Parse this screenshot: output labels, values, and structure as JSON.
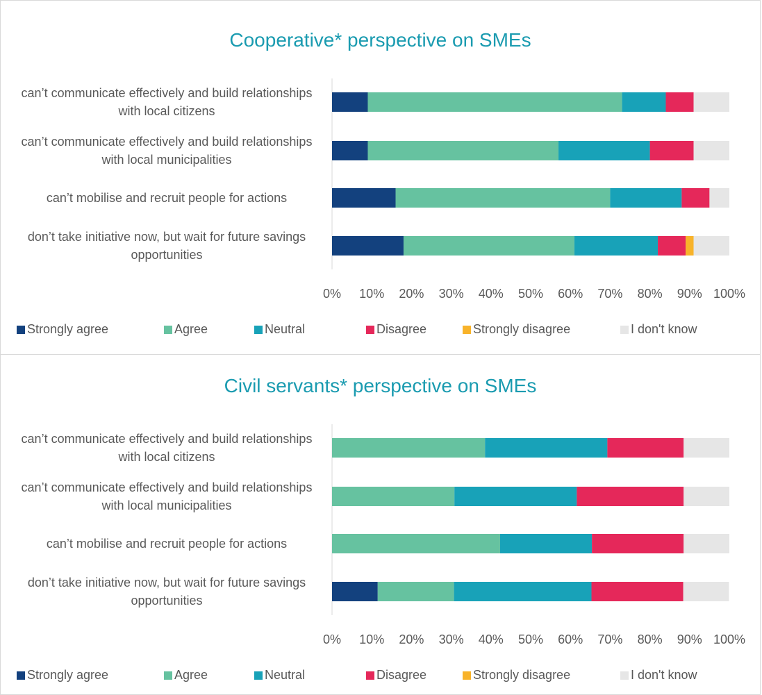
{
  "chart_data": [
    {
      "type": "bar",
      "orientation": "horizontal",
      "stacked": true,
      "title": "Cooperative* perspective on SMEs",
      "categories": [
        "can’t communicate effectively and build relationships with local citizens",
        "can’t communicate effectively and build relationships with local municipalities",
        "can’t mobilise and recruit people for actions",
        "don’t take initiative now, but wait for future savings opportunities"
      ],
      "series": [
        {
          "name": "Strongly agree",
          "color": "#13417e",
          "values": [
            9,
            9,
            16,
            18
          ]
        },
        {
          "name": "Agree",
          "color": "#66c2a0",
          "values": [
            64,
            48,
            54,
            43
          ]
        },
        {
          "name": "Neutral",
          "color": "#18a2b8",
          "values": [
            11,
            23,
            18,
            21
          ]
        },
        {
          "name": "Disagree",
          "color": "#e5285a",
          "values": [
            7,
            11,
            7,
            7
          ]
        },
        {
          "name": "Strongly disagree",
          "color": "#f8b32a",
          "values": [
            0,
            0,
            0,
            2
          ]
        },
        {
          "name": "I don't know",
          "color": "#e6e6e6",
          "values": [
            9,
            9,
            5,
            9
          ]
        }
      ],
      "xlim": [
        0,
        100
      ],
      "xticks": [
        {
          "value": 0,
          "label": "0%"
        },
        {
          "value": 10,
          "label": "10%"
        },
        {
          "value": 20,
          "label": "20%"
        },
        {
          "value": 30,
          "label": "30%"
        },
        {
          "value": 40,
          "label": "40%"
        },
        {
          "value": 50,
          "label": "50%"
        },
        {
          "value": 60,
          "label": "60%"
        },
        {
          "value": 70,
          "label": "70%"
        },
        {
          "value": 80,
          "label": "80%"
        },
        {
          "value": 90,
          "label": "90%"
        },
        {
          "value": 100,
          "label": "100%"
        }
      ],
      "legend": "bottom",
      "grid": false
    },
    {
      "type": "bar",
      "orientation": "horizontal",
      "stacked": true,
      "title": "Civil servants* perspective on SMEs",
      "categories": [
        "can’t communicate effectively and build relationships with local citizens",
        "can’t communicate effectively and build relationships with local municipalities",
        "can’t mobilise and recruit people for actions",
        "don’t take initiative now, but wait for future savings opportunities"
      ],
      "series": [
        {
          "name": "Strongly agree",
          "color": "#13417e",
          "values": [
            0,
            0,
            0,
            11.5
          ]
        },
        {
          "name": "Agree",
          "color": "#66c2a0",
          "values": [
            38.5,
            30.8,
            42.3,
            19.2
          ]
        },
        {
          "name": "Neutral",
          "color": "#18a2b8",
          "values": [
            30.8,
            30.8,
            23.1,
            34.6
          ]
        },
        {
          "name": "Disagree",
          "color": "#e5285a",
          "values": [
            19.2,
            26.9,
            23.1,
            23.1
          ]
        },
        {
          "name": "Strongly disagree",
          "color": "#f8b32a",
          "values": [
            0,
            0,
            0,
            0
          ]
        },
        {
          "name": "I don't know",
          "color": "#e6e6e6",
          "values": [
            11.5,
            11.5,
            11.5,
            11.5
          ]
        }
      ],
      "xlim": [
        0,
        100
      ],
      "xticks": [
        {
          "value": 0,
          "label": "0%"
        },
        {
          "value": 10,
          "label": "10%"
        },
        {
          "value": 20,
          "label": "20%"
        },
        {
          "value": 30,
          "label": "30%"
        },
        {
          "value": 40,
          "label": "40%"
        },
        {
          "value": 50,
          "label": "50%"
        },
        {
          "value": 60,
          "label": "60%"
        },
        {
          "value": 70,
          "label": "70%"
        },
        {
          "value": 80,
          "label": "80%"
        },
        {
          "value": 90,
          "label": "90%"
        },
        {
          "value": 100,
          "label": "100%"
        }
      ],
      "legend": "bottom",
      "grid": false
    }
  ]
}
